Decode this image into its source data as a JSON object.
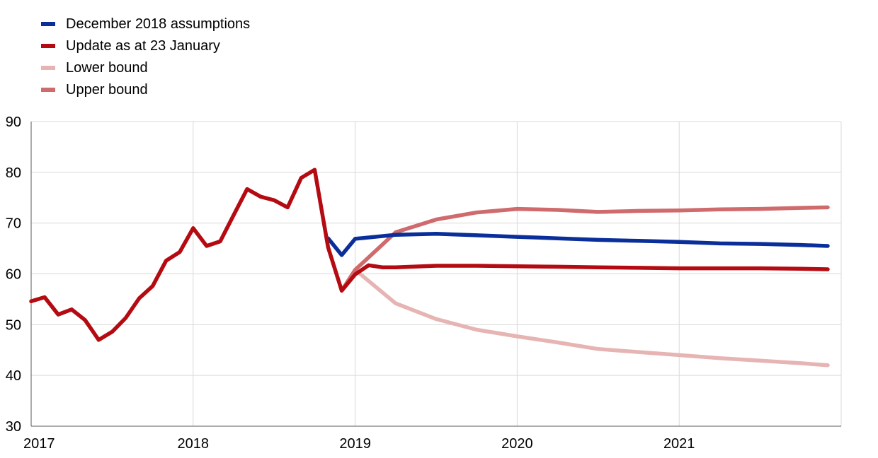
{
  "chart_data": {
    "type": "line",
    "title": "",
    "xlabel": "",
    "ylabel": "",
    "xlim": [
      2017.0,
      2022.0
    ],
    "ylim": [
      30,
      90
    ],
    "y_ticks": [
      30,
      40,
      50,
      60,
      70,
      80,
      90
    ],
    "x_ticks": [
      2017,
      2018,
      2019,
      2020,
      2021
    ],
    "x_tick_labels": [
      "2017",
      "2018",
      "2019",
      "2020",
      "2021"
    ],
    "grid": true,
    "legend_position": "top-left",
    "series": [
      {
        "name": "December 2018 assumptions",
        "color": "#0b2f9a",
        "x": [
          2018.833,
          2018.917,
          2019.0,
          2019.25,
          2019.5,
          2019.75,
          2020.0,
          2020.25,
          2020.5,
          2020.75,
          2021.0,
          2021.25,
          2021.5,
          2021.75,
          2021.917
        ],
        "y": [
          67.0,
          63.7,
          66.9,
          67.7,
          67.9,
          67.6,
          67.3,
          67.0,
          66.7,
          66.5,
          66.3,
          66.0,
          65.9,
          65.7,
          65.5
        ]
      },
      {
        "name": "Update as at 23 January",
        "color": "#b40b12",
        "x": [
          2017.0,
          2017.083,
          2017.167,
          2017.25,
          2017.333,
          2017.417,
          2017.5,
          2017.583,
          2017.667,
          2017.75,
          2017.833,
          2017.917,
          2018.0,
          2018.083,
          2018.167,
          2018.25,
          2018.333,
          2018.417,
          2018.5,
          2018.583,
          2018.667,
          2018.75,
          2018.833,
          2018.917,
          2019.0,
          2019.083,
          2019.167,
          2019.25,
          2019.5,
          2019.75,
          2020.0,
          2020.25,
          2020.5,
          2020.75,
          2021.0,
          2021.25,
          2021.5,
          2021.75,
          2021.917
        ],
        "y": [
          54.6,
          55.4,
          52.0,
          53.0,
          50.9,
          47.0,
          48.6,
          51.3,
          55.2,
          57.6,
          62.6,
          64.3,
          69.0,
          65.5,
          66.4,
          71.6,
          76.7,
          75.2,
          74.5,
          73.1,
          78.9,
          80.5,
          65.2,
          56.7,
          59.9,
          61.7,
          61.3,
          61.3,
          61.6,
          61.6,
          61.5,
          61.4,
          61.3,
          61.2,
          61.1,
          61.1,
          61.1,
          61.0,
          60.9
        ]
      },
      {
        "name": "Lower bound",
        "color": "#e7b4b4",
        "x": [
          2018.917,
          2019.0,
          2019.25,
          2019.5,
          2019.75,
          2020.0,
          2020.25,
          2020.5,
          2020.75,
          2021.0,
          2021.25,
          2021.5,
          2021.75,
          2021.917
        ],
        "y": [
          56.7,
          60.8,
          54.2,
          51.1,
          49.0,
          47.7,
          46.5,
          45.2,
          44.6,
          44.0,
          43.4,
          42.9,
          42.4,
          42.0
        ]
      },
      {
        "name": "Upper bound",
        "color": "#cf6a6d",
        "x": [
          2018.917,
          2019.0,
          2019.25,
          2019.5,
          2019.75,
          2020.0,
          2020.25,
          2020.5,
          2020.75,
          2021.0,
          2021.25,
          2021.5,
          2021.75,
          2021.917
        ],
        "y": [
          56.7,
          60.8,
          68.2,
          70.7,
          72.1,
          72.8,
          72.6,
          72.2,
          72.4,
          72.5,
          72.7,
          72.8,
          73.0,
          73.1
        ]
      }
    ]
  }
}
